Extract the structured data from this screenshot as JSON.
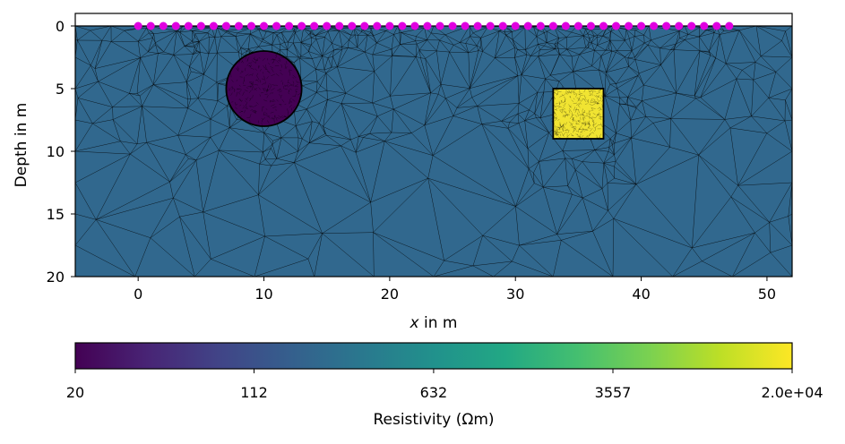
{
  "chart_data": {
    "type": "heatmap",
    "title": "",
    "xlabel_var": "x",
    "xlabel_rest": " in m",
    "ylabel": "Depth in m",
    "xlim": [
      -5,
      52
    ],
    "ylim": [
      20,
      -1
    ],
    "xticks": [
      0,
      10,
      20,
      30,
      40,
      50
    ],
    "xtick_labels": [
      "0",
      "10",
      "20",
      "30",
      "40",
      "50"
    ],
    "yticks": [
      0,
      5,
      10,
      15,
      20
    ],
    "ytick_labels": [
      "0",
      "5",
      "10",
      "15",
      "20"
    ],
    "grid": false,
    "background_resistivity": 150,
    "background_color": "#31688e",
    "anomalies": [
      {
        "shape": "circle",
        "center": [
          10,
          5
        ],
        "radius": 3,
        "resistivity": 20,
        "color": "#440154"
      },
      {
        "shape": "rectangle",
        "x_range": [
          33,
          37
        ],
        "y_range": [
          5,
          9
        ],
        "resistivity": 20000,
        "color": "#f1e432"
      }
    ],
    "electrodes": {
      "x_start": 0,
      "x_end": 47,
      "spacing": 1,
      "count": 48,
      "depth": 0,
      "color": "#e000e0"
    },
    "colorbar": {
      "label": "Resistivity (Ωm)",
      "min": 20,
      "max": 20000,
      "scale": "log",
      "colormap": "viridis",
      "tick_labels": [
        "20",
        "112",
        "632",
        "3557",
        "2.0e+04"
      ],
      "tick_values": [
        20,
        112,
        632,
        3557,
        20000
      ]
    }
  }
}
